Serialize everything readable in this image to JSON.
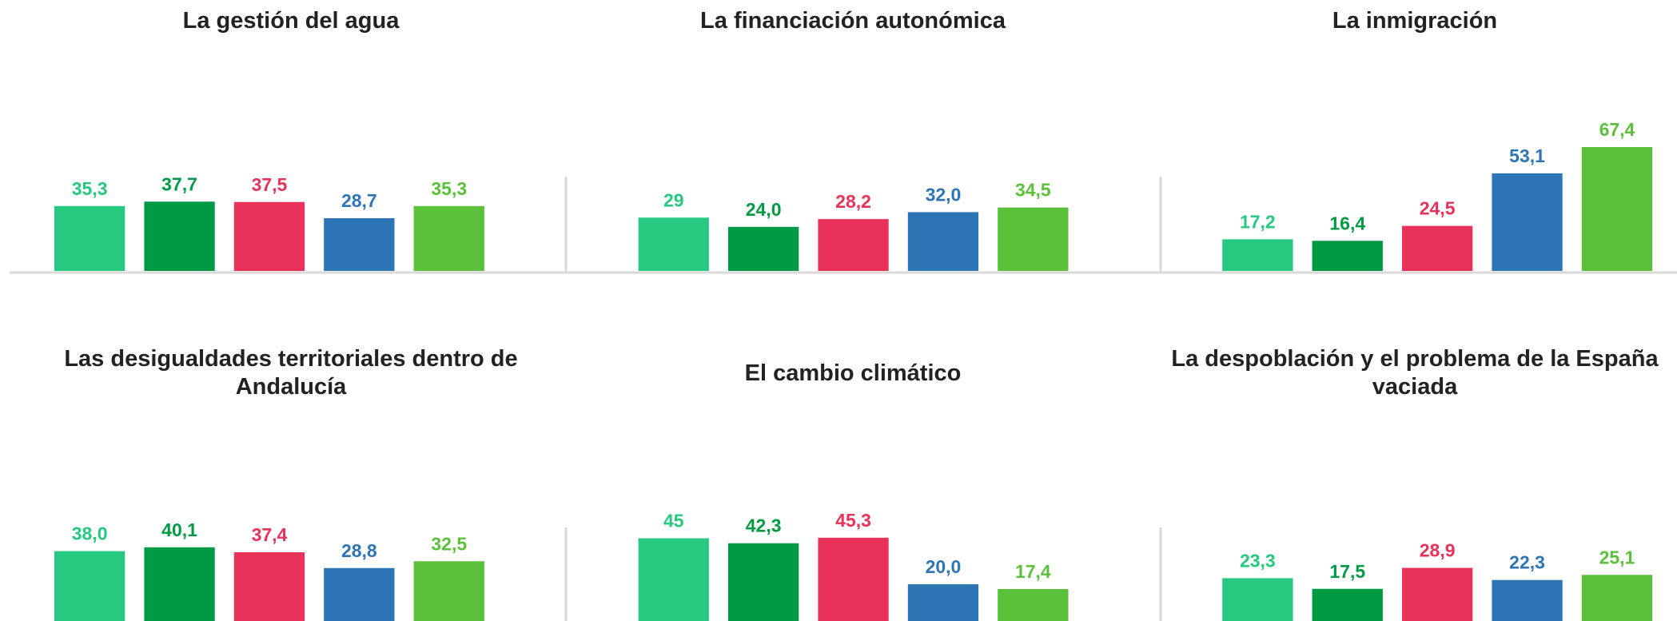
{
  "chart_data": [
    {
      "type": "bar",
      "title": "La gestión del agua",
      "values": [
        35.3,
        37.7,
        37.5,
        28.7,
        35.3
      ],
      "value_labels": [
        "35,3",
        "37,7",
        "37,5",
        "28,7",
        "35,3"
      ],
      "colors": [
        "#26c97f",
        "#009a44",
        "#e8325a",
        "#2e75b6",
        "#5cc13a"
      ]
    },
    {
      "type": "bar",
      "title": "La financiación autonómica",
      "values": [
        29,
        24.0,
        28.2,
        32.0,
        34.5
      ],
      "value_labels": [
        "29",
        "24,0",
        "28,2",
        "32,0",
        "34,5"
      ],
      "colors": [
        "#26c97f",
        "#009a44",
        "#e8325a",
        "#2e75b6",
        "#5cc13a"
      ]
    },
    {
      "type": "bar",
      "title": "La inmigración",
      "values": [
        17.2,
        16.4,
        24.5,
        53.1,
        67.4
      ],
      "value_labels": [
        "17,2",
        "16,4",
        "24,5",
        "53,1",
        "67,4"
      ],
      "colors": [
        "#26c97f",
        "#009a44",
        "#e8325a",
        "#2e75b6",
        "#5cc13a"
      ]
    },
    {
      "type": "bar",
      "title": "Las desigualdades territoriales dentro de Andalucía",
      "values": [
        38.0,
        40.1,
        37.4,
        28.8,
        32.5
      ],
      "value_labels": [
        "38,0",
        "40,1",
        "37,4",
        "28,8",
        "32,5"
      ],
      "colors": [
        "#26c97f",
        "#009a44",
        "#e8325a",
        "#2e75b6",
        "#5cc13a"
      ]
    },
    {
      "type": "bar",
      "title": "El cambio climático",
      "values": [
        45,
        42.3,
        45.3,
        20.0,
        17.4
      ],
      "value_labels": [
        "45",
        "42,3",
        "45,3",
        "20,0",
        "17,4"
      ],
      "colors": [
        "#26c97f",
        "#009a44",
        "#e8325a",
        "#2e75b6",
        "#5cc13a"
      ]
    },
    {
      "type": "bar",
      "title": "La despoblación y el problema de la España vaciada",
      "values": [
        23.3,
        17.5,
        28.9,
        22.3,
        25.1
      ],
      "value_labels": [
        "23,3",
        "17,5",
        "28,9",
        "22,3",
        "25,1"
      ],
      "colors": [
        "#26c97f",
        "#009a44",
        "#e8325a",
        "#2e75b6",
        "#5cc13a"
      ]
    }
  ]
}
